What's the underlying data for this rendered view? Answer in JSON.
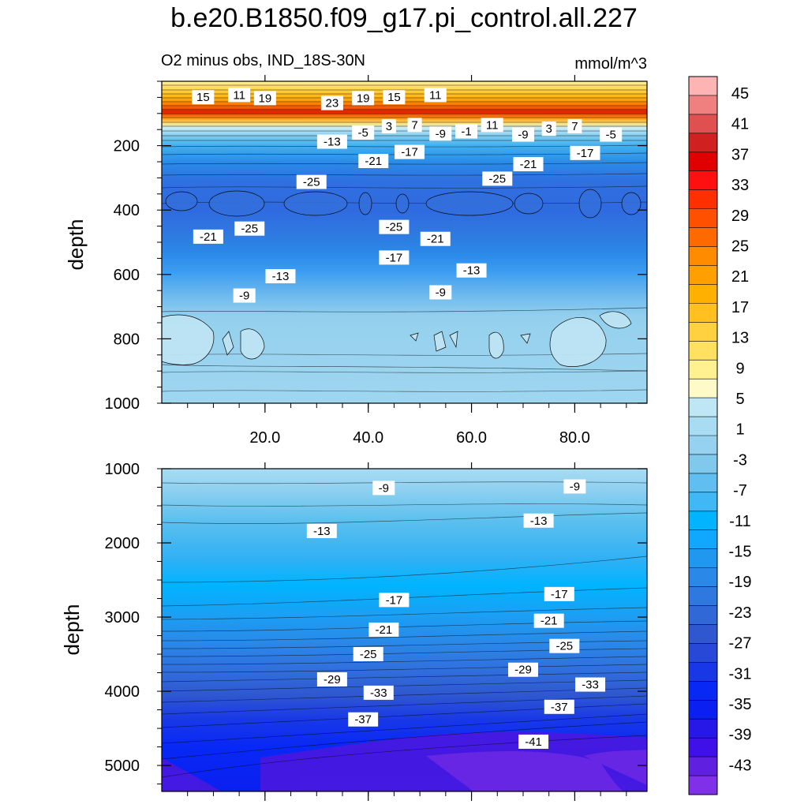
{
  "title": "b.e20.B1850.f09_g17.pi_control.all.227",
  "chart_data": {
    "type": "contour",
    "subtitle_left": "O2 minus obs, IND_18S-30N",
    "subtitle_right": "mmol/m^3",
    "xlabel": "",
    "x_range": [
      0,
      94
    ],
    "x_tick_labels": [
      "20.0",
      "40.0",
      "60.0",
      "80.0"
    ],
    "x_tick_values": [
      20,
      40,
      60,
      80
    ],
    "panels": [
      {
        "name": "upper",
        "ylabel": "depth",
        "y_range": [
          0,
          1000
        ],
        "y_tick_labels": [
          "200",
          "400",
          "600",
          "800",
          "1000"
        ],
        "y_tick_values": [
          200,
          400,
          600,
          800,
          1000
        ],
        "contour_labels": [
          {
            "text": "15",
            "x": 8,
            "y": 52
          },
          {
            "text": "11",
            "x": 15,
            "y": 45
          },
          {
            "text": "19",
            "x": 20,
            "y": 55
          },
          {
            "text": "23",
            "x": 33,
            "y": 70
          },
          {
            "text": "19",
            "x": 39,
            "y": 55
          },
          {
            "text": "15",
            "x": 45,
            "y": 52
          },
          {
            "text": "11",
            "x": 53,
            "y": 45
          },
          {
            "text": "-13",
            "x": 33,
            "y": 190
          },
          {
            "text": "-5",
            "x": 39,
            "y": 162
          },
          {
            "text": "3",
            "x": 44,
            "y": 142
          },
          {
            "text": "7",
            "x": 49,
            "y": 138
          },
          {
            "text": "-9",
            "x": 54,
            "y": 165
          },
          {
            "text": "-1",
            "x": 59,
            "y": 158
          },
          {
            "text": "11",
            "x": 64,
            "y": 138
          },
          {
            "text": "-9",
            "x": 70,
            "y": 168
          },
          {
            "text": "3",
            "x": 75,
            "y": 150
          },
          {
            "text": "7",
            "x": 80,
            "y": 142
          },
          {
            "text": "-5",
            "x": 87,
            "y": 168
          },
          {
            "text": "-17",
            "x": 48,
            "y": 222
          },
          {
            "text": "-17",
            "x": 82,
            "y": 225
          },
          {
            "text": "-21",
            "x": 41,
            "y": 250
          },
          {
            "text": "-21",
            "x": 71,
            "y": 260
          },
          {
            "text": "-25",
            "x": 29,
            "y": 315
          },
          {
            "text": "-25",
            "x": 65,
            "y": 305
          },
          {
            "text": "-25",
            "x": 17,
            "y": 460
          },
          {
            "text": "-25",
            "x": 45,
            "y": 455
          },
          {
            "text": "-21",
            "x": 9,
            "y": 485
          },
          {
            "text": "-21",
            "x": 53,
            "y": 492
          },
          {
            "text": "-17",
            "x": 45,
            "y": 550
          },
          {
            "text": "-13",
            "x": 23,
            "y": 608
          },
          {
            "text": "-13",
            "x": 60,
            "y": 590
          },
          {
            "text": "-9",
            "x": 16,
            "y": 668
          },
          {
            "text": "-9",
            "x": 54,
            "y": 658
          }
        ]
      },
      {
        "name": "lower",
        "ylabel": "depth",
        "y_range": [
          1000,
          5350
        ],
        "y_tick_labels": [
          "1000",
          "2000",
          "3000",
          "4000",
          "5000"
        ],
        "y_tick_values": [
          1000,
          2000,
          3000,
          4000,
          5000
        ],
        "contour_labels": [
          {
            "text": "-9",
            "x": 43,
            "y": 1270
          },
          {
            "text": "-9",
            "x": 80,
            "y": 1250
          },
          {
            "text": "-13",
            "x": 31,
            "y": 1850
          },
          {
            "text": "-13",
            "x": 73,
            "y": 1710
          },
          {
            "text": "-17",
            "x": 45,
            "y": 2780
          },
          {
            "text": "-17",
            "x": 77,
            "y": 2700
          },
          {
            "text": "-21",
            "x": 43,
            "y": 3180
          },
          {
            "text": "-21",
            "x": 75,
            "y": 3060
          },
          {
            "text": "-25",
            "x": 40,
            "y": 3510
          },
          {
            "text": "-25",
            "x": 78,
            "y": 3400
          },
          {
            "text": "-29",
            "x": 33,
            "y": 3850
          },
          {
            "text": "-29",
            "x": 70,
            "y": 3720
          },
          {
            "text": "-33",
            "x": 42,
            "y": 4030
          },
          {
            "text": "-33",
            "x": 83,
            "y": 3920
          },
          {
            "text": "-37",
            "x": 39,
            "y": 4390
          },
          {
            "text": "-37",
            "x": 77,
            "y": 4220
          },
          {
            "text": "-41",
            "x": 72,
            "y": 4690
          }
        ]
      }
    ],
    "colorbar": {
      "labels": [
        "45",
        "41",
        "37",
        "33",
        "29",
        "25",
        "21",
        "17",
        "13",
        "9",
        "5",
        "1",
        "-3",
        "-7",
        "-11",
        "-15",
        "-19",
        "-23",
        "-27",
        "-31",
        "-35",
        "-39",
        "-43"
      ],
      "colors": [
        "#ffb4b4",
        "#f08080",
        "#e05050",
        "#d02020",
        "#e00000",
        "#ff1010",
        "#ff3000",
        "#ff5000",
        "#ff6a00",
        "#ff8c00",
        "#ffa000",
        "#ffb000",
        "#ffc020",
        "#ffd040",
        "#ffe060",
        "#fff090",
        "#fffac8",
        "#bfe6f5",
        "#a8dcf2",
        "#96d2ef",
        "#80c8ec",
        "#60bff0",
        "#40b8f5",
        "#00b4ff",
        "#10a8ff",
        "#2098f0",
        "#2a88e8",
        "#2f78e0",
        "#3068d8",
        "#2f58d0",
        "#2848d8",
        "#1838e8",
        "#0828f5",
        "#0a20f0",
        "#2818e8",
        "#4010e8",
        "#6020e0",
        "#8030e8"
      ]
    }
  }
}
